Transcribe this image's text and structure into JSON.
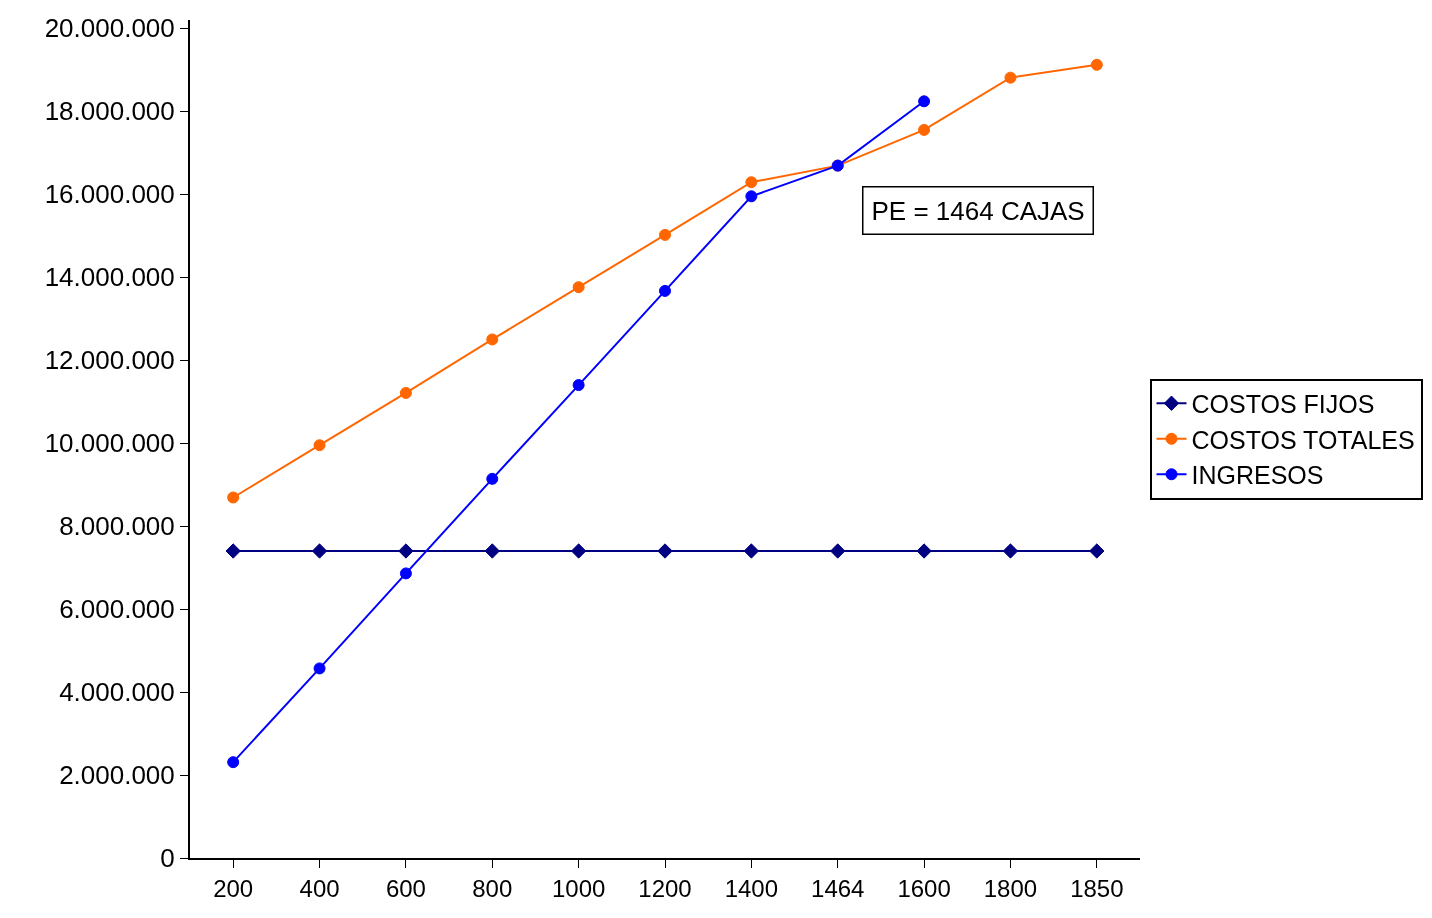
{
  "chart_data": {
    "type": "line",
    "categories": [
      "200",
      "400",
      "600",
      "800",
      "1000",
      "1200",
      "1400",
      "1464",
      "1600",
      "1800",
      "1850"
    ],
    "series": [
      {
        "name": "COSTOS FIJOS",
        "color": "#000080",
        "marker": "diamond",
        "values": [
          7400000,
          7400000,
          7400000,
          7400000,
          7400000,
          7400000,
          7400000,
          7400000,
          7400000,
          7400000,
          7400000
        ]
      },
      {
        "name": "COSTOS TOTALES",
        "color": "#ff6600",
        "marker": "circle",
        "values": [
          8690000,
          9950000,
          11210000,
          12500000,
          13760000,
          15020000,
          16290000,
          16690000,
          17550000,
          18810000,
          19120000
        ]
      },
      {
        "name": "INGRESOS",
        "color": "#0000ff",
        "marker": "circle",
        "values": [
          2310000,
          4570000,
          6860000,
          9140000,
          11400000,
          13670000,
          15950000,
          16690000,
          18240000,
          null,
          null
        ]
      }
    ],
    "ylim": [
      0,
      20200000
    ],
    "yticks": [
      0,
      {
        "value": 2000000,
        "label": "2.000.000"
      },
      {
        "value": 4000000,
        "label": "4.000.000"
      },
      {
        "value": 6000000,
        "label": "6.000.000"
      },
      {
        "value": 8000000,
        "label": "8.000.000"
      },
      {
        "value": 10000000,
        "label": "10.000.000"
      },
      {
        "value": 12000000,
        "label": "12.000.000"
      },
      {
        "value": 14000000,
        "label": "14.000.000"
      },
      {
        "value": 16000000,
        "label": "16.000.000"
      },
      {
        "value": 18000000,
        "label": "18.000.000"
      },
      {
        "value": 20000000,
        "label": "20.000.000"
      }
    ],
    "annotations": [
      {
        "text": "PE = 1464 CAJAS",
        "x": "1464",
        "y": 16690000
      }
    ],
    "legend": "right"
  }
}
